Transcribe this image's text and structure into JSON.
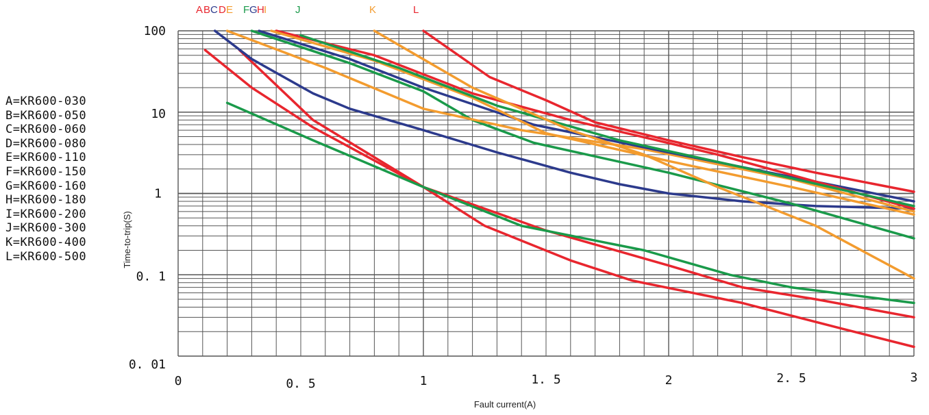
{
  "chart_data": {
    "type": "line",
    "xlabel": "Fault current(A)",
    "ylabel": "Time-to-trip(S)",
    "xlim": [
      0,
      3
    ],
    "ylim": [
      0.01,
      100
    ],
    "yscale": "log",
    "grid": true,
    "x_ticks": [
      "0",
      "0. 5",
      "1",
      "1. 5",
      "2",
      "2. 5",
      "3"
    ],
    "y_ticks": [
      "100",
      "10",
      "1",
      "0. 1",
      "0. 01"
    ],
    "legend_text": [
      "A=KR600-030",
      "B=KR600-050",
      "C=KR600-060",
      "D=KR600-080",
      "E=KR600-110",
      "F=KR600-150",
      "G=KR600-160",
      "H=KR600-180",
      "I=KR600-200",
      "J=KR600-300",
      "K=KR600-400",
      "L=KR600-500"
    ],
    "top_labels": [
      {
        "text": "A",
        "color": "#e8262e"
      },
      {
        "text": "B",
        "color": "#e8262e"
      },
      {
        "text": "C",
        "color": "#2c3a8c"
      },
      {
        "text": "D",
        "color": "#e8262e"
      },
      {
        "text": "E",
        "color": "#f39c2f"
      },
      {
        "text": "F",
        "color": "#1a9a4a"
      },
      {
        "text": "G",
        "color": "#2c3a8c"
      },
      {
        "text": "H",
        "color": "#e8262e"
      },
      {
        "text": "I",
        "color": "#f39c2f"
      },
      {
        "text": "J",
        "color": "#1a9a4a"
      },
      {
        "text": "K",
        "color": "#f39c2f"
      },
      {
        "text": "L",
        "color": "#e8262e"
      }
    ],
    "series": [
      {
        "color": "#e8262e",
        "points": [
          [
            0.11,
            58
          ],
          [
            0.3,
            20
          ],
          [
            0.55,
            6.5
          ],
          [
            1.0,
            1.2
          ],
          [
            1.25,
            0.4
          ],
          [
            1.6,
            0.15
          ],
          [
            1.85,
            0.085
          ],
          [
            2.3,
            0.045
          ],
          [
            2.7,
            0.022
          ],
          [
            3.0,
            0.013
          ]
        ]
      },
      {
        "color": "#e8262e",
        "points": [
          [
            0.25,
            58
          ],
          [
            0.55,
            8
          ],
          [
            1.0,
            1.2
          ],
          [
            1.5,
            0.35
          ],
          [
            2.0,
            0.13
          ],
          [
            2.3,
            0.07
          ],
          [
            2.6,
            0.05
          ],
          [
            3.0,
            0.03
          ]
        ]
      },
      {
        "color": "#1a9a4a",
        "points": [
          [
            0.2,
            13
          ],
          [
            0.55,
            4.5
          ],
          [
            1.0,
            1.2
          ],
          [
            1.4,
            0.4
          ],
          [
            1.9,
            0.2
          ],
          [
            2.25,
            0.1
          ],
          [
            2.5,
            0.07
          ],
          [
            3.0,
            0.045
          ]
        ]
      },
      {
        "color": "#2c3a8c",
        "points": [
          [
            0.15,
            100
          ],
          [
            0.3,
            45
          ],
          [
            0.55,
            17
          ],
          [
            0.7,
            11
          ],
          [
            1.0,
            6
          ],
          [
            1.3,
            3.2
          ],
          [
            1.6,
            1.8
          ],
          [
            1.8,
            1.3
          ],
          [
            2.0,
            1.0
          ],
          [
            2.3,
            0.8
          ],
          [
            2.6,
            0.7
          ],
          [
            3.0,
            0.65
          ]
        ]
      },
      {
        "color": "#1a9a4a",
        "points": [
          [
            0.3,
            100
          ],
          [
            0.7,
            40
          ],
          [
            1.0,
            18
          ],
          [
            1.2,
            8
          ],
          [
            1.45,
            4.2
          ],
          [
            2.0,
            1.8
          ],
          [
            2.5,
            0.75
          ],
          [
            3.0,
            0.28
          ]
        ]
      },
      {
        "color": "#f39c2f",
        "points": [
          [
            0.2,
            100
          ],
          [
            0.6,
            35
          ],
          [
            1.0,
            11
          ],
          [
            1.4,
            6
          ],
          [
            1.9,
            3.5
          ],
          [
            2.5,
            1.5
          ],
          [
            3.0,
            0.6
          ]
        ]
      },
      {
        "color": "#2c3a8c",
        "points": [
          [
            0.33,
            100
          ],
          [
            0.7,
            45
          ],
          [
            1.0,
            20
          ],
          [
            1.45,
            7
          ],
          [
            2.0,
            3.2
          ],
          [
            2.5,
            1.6
          ],
          [
            3.0,
            0.8
          ]
        ]
      },
      {
        "color": "#e8262e",
        "points": [
          [
            0.4,
            100
          ],
          [
            0.8,
            50
          ],
          [
            1.2,
            17
          ],
          [
            1.6,
            8
          ],
          [
            2.2,
            3.0
          ],
          [
            3.0,
            0.65
          ]
        ]
      },
      {
        "color": "#f39c2f",
        "points": [
          [
            0.38,
            100
          ],
          [
            0.8,
            43
          ],
          [
            1.2,
            15
          ],
          [
            1.5,
            5.5
          ],
          [
            2.0,
            2.5
          ],
          [
            2.5,
            1.2
          ],
          [
            3.0,
            0.55
          ]
        ]
      },
      {
        "color": "#1a9a4a",
        "points": [
          [
            0.5,
            88
          ],
          [
            0.9,
            35
          ],
          [
            1.3,
            12
          ],
          [
            1.8,
            4.5
          ],
          [
            2.4,
            1.8
          ],
          [
            3.0,
            0.7
          ]
        ]
      },
      {
        "color": "#f39c2f",
        "points": [
          [
            0.8,
            100
          ],
          [
            1.2,
            20
          ],
          [
            1.6,
            6
          ],
          [
            1.9,
            3
          ],
          [
            2.2,
            1.2
          ],
          [
            2.6,
            0.4
          ],
          [
            3.0,
            0.09
          ]
        ]
      },
      {
        "color": "#e8262e",
        "points": [
          [
            1.0,
            100
          ],
          [
            1.27,
            27
          ],
          [
            1.5,
            14
          ],
          [
            1.7,
            7.5
          ],
          [
            2.0,
            4.5
          ],
          [
            2.3,
            2.8
          ],
          [
            2.6,
            1.8
          ],
          [
            3.0,
            1.05
          ]
        ]
      }
    ]
  }
}
